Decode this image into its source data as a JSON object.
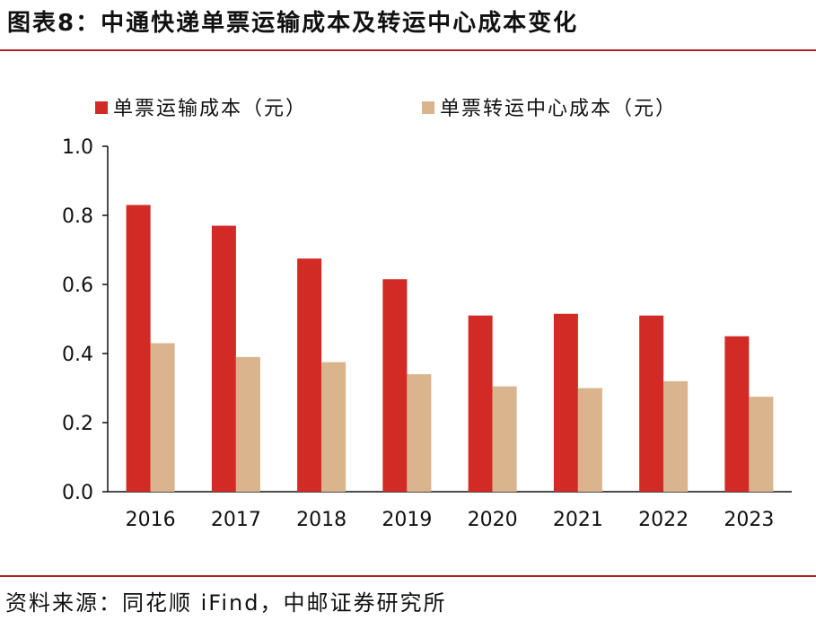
{
  "title": "图表8：中通快递单票运输成本及转运中心成本变化",
  "source": "资料来源：同花顺 iFind，中邮证券研究所",
  "colors": {
    "accent_rule": "#b22222",
    "series_transport": "#d22b26",
    "series_center": "#d9b48c"
  },
  "chart_data": {
    "type": "bar",
    "categories": [
      "2016",
      "2017",
      "2018",
      "2019",
      "2020",
      "2021",
      "2022",
      "2023"
    ],
    "series": [
      {
        "name": "单票运输成本（元）",
        "values": [
          0.83,
          0.77,
          0.675,
          0.615,
          0.51,
          0.515,
          0.51,
          0.45
        ]
      },
      {
        "name": "单票转运中心成本（元）",
        "values": [
          0.43,
          0.39,
          0.375,
          0.34,
          0.305,
          0.3,
          0.32,
          0.275
        ]
      }
    ],
    "ylim": [
      0,
      1.0
    ],
    "yticks": [
      "0.0",
      "0.2",
      "0.4",
      "0.6",
      "0.8",
      "1.0"
    ],
    "xlabel": "",
    "ylabel": "",
    "grid": false,
    "legend_position": "top"
  }
}
